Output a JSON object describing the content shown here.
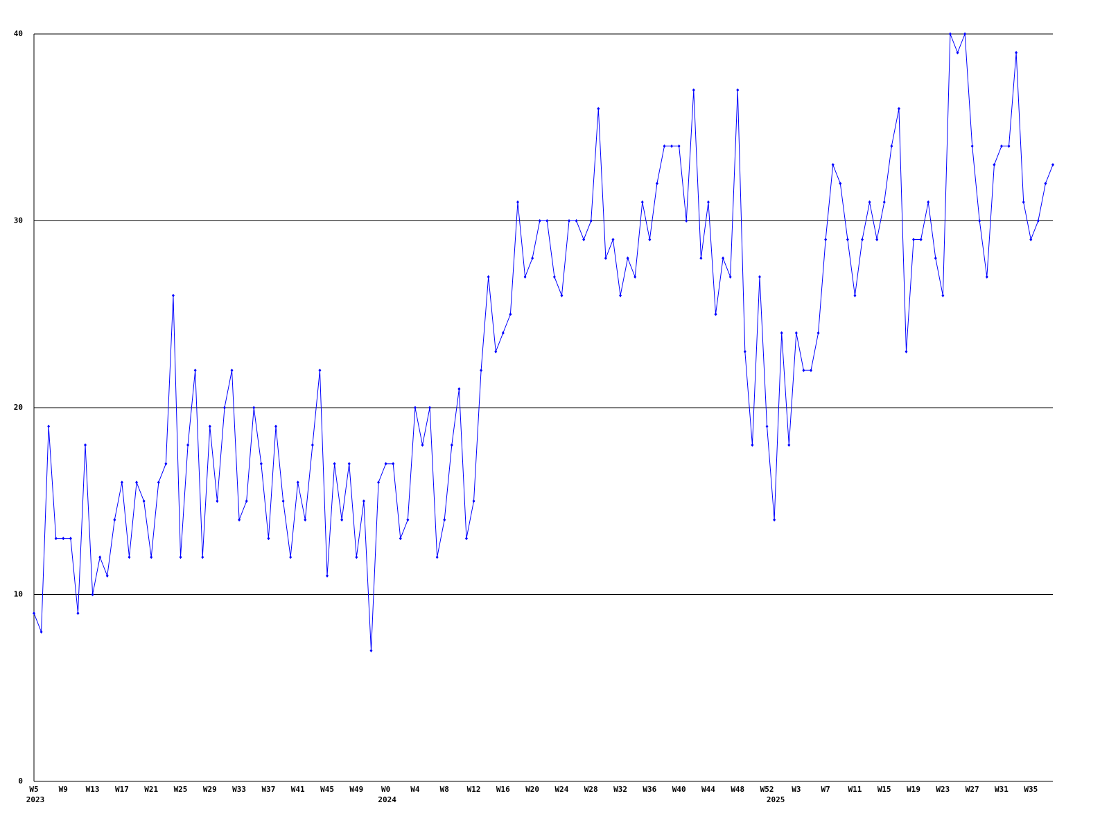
{
  "chart_data": {
    "type": "line",
    "color": "#0000ff",
    "grid": true,
    "ylim": [
      0,
      40
    ],
    "yticks": [
      0,
      10,
      20,
      30,
      40
    ],
    "categories": [
      "W5",
      null,
      null,
      null,
      "W9",
      null,
      null,
      null,
      "W13",
      null,
      null,
      null,
      "W17",
      null,
      null,
      null,
      "W21",
      null,
      null,
      null,
      "W25",
      null,
      null,
      null,
      "W29",
      null,
      null,
      null,
      "W33",
      null,
      null,
      null,
      "W37",
      null,
      null,
      null,
      "W41",
      null,
      null,
      null,
      "W45",
      null,
      null,
      null,
      "W49",
      null,
      null,
      null,
      "W0",
      null,
      null,
      null,
      "W4",
      null,
      null,
      null,
      "W8",
      null,
      null,
      null,
      "W12",
      null,
      null,
      null,
      "W16",
      null,
      null,
      null,
      "W20",
      null,
      null,
      null,
      "W24",
      null,
      null,
      null,
      "W28",
      null,
      null,
      null,
      "W32",
      null,
      null,
      null,
      "W36",
      null,
      null,
      null,
      "W40",
      null,
      null,
      null,
      "W44",
      null,
      null,
      null,
      "W48",
      null,
      null,
      null,
      "W52",
      null,
      null,
      null,
      "W3",
      null,
      null,
      null,
      "W7",
      null,
      null,
      null,
      "W11",
      null,
      null,
      null,
      "W15",
      null,
      null,
      null,
      "W19",
      null,
      null,
      null,
      "W23",
      null,
      null,
      null,
      "W27",
      null,
      null,
      null,
      "W31",
      null,
      null,
      null,
      "W35",
      null,
      null,
      null
    ],
    "years": [
      "2023",
      null,
      null,
      null,
      null,
      null,
      null,
      null,
      null,
      null,
      null,
      null,
      null,
      null,
      null,
      null,
      null,
      null,
      null,
      null,
      null,
      null,
      null,
      null,
      null,
      null,
      null,
      null,
      null,
      null,
      null,
      null,
      null,
      null,
      null,
      null,
      null,
      null,
      null,
      null,
      null,
      null,
      null,
      null,
      null,
      null,
      null,
      null,
      "2024",
      null,
      null,
      null,
      null,
      null,
      null,
      null,
      null,
      null,
      null,
      null,
      null,
      null,
      null,
      null,
      null,
      null,
      null,
      null,
      null,
      null,
      null,
      null,
      null,
      null,
      null,
      null,
      null,
      null,
      null,
      null,
      null,
      null,
      null,
      null,
      null,
      null,
      null,
      null,
      null,
      null,
      null,
      null,
      null,
      null,
      null,
      null,
      null,
      null,
      null,
      null,
      null,
      "2025",
      null,
      null,
      null,
      null,
      null,
      null,
      null,
      null,
      null,
      null,
      null,
      null,
      null,
      null,
      null,
      null,
      null,
      null,
      null,
      null,
      null,
      null,
      null,
      null,
      null,
      null,
      null,
      null,
      null,
      null,
      null,
      null,
      null,
      null,
      null,
      null,
      null,
      null
    ],
    "values": [
      9,
      8,
      19,
      13,
      13,
      13,
      9,
      18,
      10,
      12,
      11,
      14,
      16,
      12,
      16,
      15,
      12,
      16,
      17,
      26,
      12,
      18,
      22,
      12,
      19,
      15,
      20,
      22,
      14,
      15,
      20,
      17,
      13,
      19,
      15,
      12,
      16,
      14,
      18,
      22,
      11,
      17,
      14,
      17,
      12,
      15,
      7,
      16,
      17,
      17,
      13,
      14,
      20,
      18,
      20,
      12,
      14,
      18,
      21,
      13,
      15,
      22,
      27,
      23,
      24,
      25,
      31,
      27,
      28,
      30,
      30,
      27,
      26,
      30,
      30,
      29,
      30,
      36,
      28,
      29,
      26,
      28,
      27,
      31,
      29,
      32,
      34,
      34,
      34,
      30,
      37,
      28,
      31,
      25,
      28,
      27,
      37,
      23,
      18,
      27,
      19,
      14,
      24,
      18,
      24,
      22,
      22,
      24,
      29,
      33,
      32,
      29,
      26,
      29,
      31,
      29,
      31,
      34,
      36,
      23,
      29,
      29,
      31,
      28,
      26,
      40,
      39,
      40,
      34,
      30,
      27,
      33,
      34,
      34,
      39,
      31,
      29,
      30,
      32,
      33
    ]
  }
}
